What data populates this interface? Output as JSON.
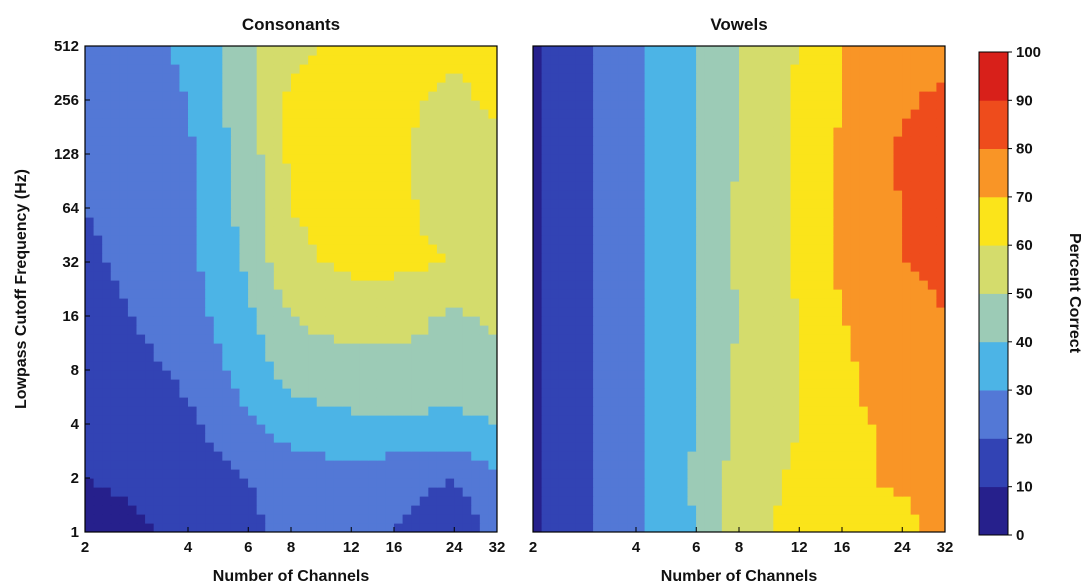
{
  "chart_data": [
    {
      "type": "heatmap",
      "title": "Consonants",
      "xlabel": "Number of Channels",
      "ylabel": "Lowpass Cutoff Frequency (Hz)",
      "x": [
        2,
        4,
        6,
        8,
        12,
        16,
        24,
        32
      ],
      "y": [
        1,
        2,
        4,
        8,
        16,
        32,
        64,
        128,
        256,
        512
      ],
      "x_scale": "log",
      "y_scale": "log2",
      "x_tick_labels": [
        "2",
        "4",
        "6",
        "8",
        "12",
        "16",
        "24",
        "32"
      ],
      "y_tick_labels": [
        "1",
        "2",
        "4",
        "8",
        "16",
        "32",
        "64",
        "128",
        "256",
        "512"
      ],
      "values": [
        [
          5,
          12,
          18,
          22,
          26,
          20,
          12,
          25
        ],
        [
          10,
          14,
          20,
          24,
          26,
          24,
          20,
          28
        ],
        [
          15,
          18,
          28,
          35,
          38,
          38,
          37,
          40
        ],
        [
          12,
          22,
          35,
          44,
          46,
          47,
          48,
          46
        ],
        [
          15,
          26,
          38,
          50,
          55,
          54,
          48,
          52
        ],
        [
          18,
          27,
          42,
          58,
          62,
          62,
          60,
          57
        ],
        [
          20,
          28,
          44,
          60,
          63,
          63,
          55,
          58
        ],
        [
          20,
          28,
          45,
          62,
          64,
          62,
          55,
          58
        ],
        [
          20,
          30,
          48,
          62,
          64,
          62,
          58,
          62
        ],
        [
          20,
          32,
          48,
          58,
          62,
          62,
          62,
          62
        ]
      ]
    },
    {
      "type": "heatmap",
      "title": "Vowels",
      "xlabel": "Number of Channels",
      "x": [
        2,
        4,
        6,
        8,
        12,
        16,
        24,
        32
      ],
      "y": [
        1,
        2,
        4,
        8,
        16,
        32,
        64,
        128,
        256,
        512
      ],
      "x_scale": "log",
      "y_scale": "log2",
      "x_tick_labels": [
        "2",
        "4",
        "6",
        "8",
        "12",
        "16",
        "24",
        "32"
      ],
      "values": [
        [
          8,
          28,
          40,
          58,
          62,
          68,
          65,
          75
        ],
        [
          8,
          28,
          42,
          55,
          62,
          68,
          72,
          75
        ],
        [
          8,
          28,
          40,
          52,
          60,
          68,
          72,
          75
        ],
        [
          8,
          28,
          40,
          52,
          60,
          68,
          76,
          80
        ],
        [
          8,
          28,
          40,
          50,
          60,
          70,
          76,
          80
        ],
        [
          8,
          28,
          40,
          52,
          62,
          72,
          80,
          82
        ],
        [
          8,
          28,
          40,
          52,
          62,
          72,
          80,
          82
        ],
        [
          8,
          28,
          40,
          50,
          62,
          72,
          82,
          82
        ],
        [
          8,
          28,
          40,
          50,
          62,
          70,
          78,
          84
        ],
        [
          8,
          28,
          40,
          50,
          60,
          70,
          72,
          72
        ]
      ]
    }
  ],
  "colorbar": {
    "label": "Percent Correct",
    "min": 0,
    "max": 100,
    "step": 10,
    "tick_labels": [
      "0",
      "10",
      "20",
      "30",
      "40",
      "50",
      "60",
      "70",
      "80",
      "90",
      "100"
    ],
    "colors": [
      "#26208c",
      "#3243b4",
      "#5378d6",
      "#4cb4e6",
      "#9ccbb6",
      "#d4dc6c",
      "#fbe41a",
      "#f99526",
      "#ee4c1c",
      "#d8201a"
    ]
  }
}
